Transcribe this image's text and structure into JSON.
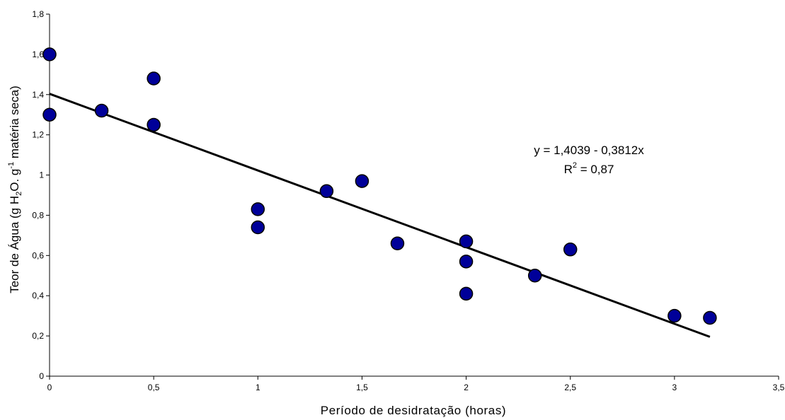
{
  "chart_data": {
    "type": "scatter",
    "xlabel": "Período de desidratação (horas)",
    "ylabel": {
      "p1": "Teor de Água (g H",
      "sub": "2",
      "p2": "O. g",
      "sup": "-1",
      "p3": " matéria seca)"
    },
    "xlim": [
      0,
      3.5
    ],
    "ylim": [
      0,
      1.8
    ],
    "x_ticks": [
      {
        "value": 0,
        "label": "0"
      },
      {
        "value": 0.5,
        "label": "0,5"
      },
      {
        "value": 1,
        "label": "1"
      },
      {
        "value": 1.5,
        "label": "1,5"
      },
      {
        "value": 2,
        "label": "2"
      },
      {
        "value": 2.5,
        "label": "2,5"
      },
      {
        "value": 3,
        "label": "3"
      },
      {
        "value": 3.5,
        "label": "3,5"
      }
    ],
    "y_ticks": [
      {
        "value": 0,
        "label": "0"
      },
      {
        "value": 0.2,
        "label": "0,2"
      },
      {
        "value": 0.4,
        "label": "0,4"
      },
      {
        "value": 0.6,
        "label": "0,6"
      },
      {
        "value": 0.8,
        "label": "0,8"
      },
      {
        "value": 1.0,
        "label": "1"
      },
      {
        "value": 1.2,
        "label": "1,2"
      },
      {
        "value": 1.4,
        "label": "1,4"
      },
      {
        "value": 1.6,
        "label": "1,6"
      },
      {
        "value": 1.8,
        "label": "1,8"
      }
    ],
    "grid": false,
    "marker_color": "#000099",
    "points": [
      {
        "x": 0,
        "y": 1.6
      },
      {
        "x": 0,
        "y": 1.3
      },
      {
        "x": 0.25,
        "y": 1.32
      },
      {
        "x": 0.5,
        "y": 1.48
      },
      {
        "x": 0.5,
        "y": 1.25
      },
      {
        "x": 1,
        "y": 0.83
      },
      {
        "x": 1,
        "y": 0.74
      },
      {
        "x": 1.33,
        "y": 0.92
      },
      {
        "x": 1.5,
        "y": 0.97
      },
      {
        "x": 1.67,
        "y": 0.66
      },
      {
        "x": 2,
        "y": 0.67
      },
      {
        "x": 2,
        "y": 0.57
      },
      {
        "x": 2,
        "y": 0.41
      },
      {
        "x": 2.33,
        "y": 0.5
      },
      {
        "x": 2.5,
        "y": 0.63
      },
      {
        "x": 3,
        "y": 0.3
      },
      {
        "x": 3.17,
        "y": 0.29
      }
    ],
    "trendline": {
      "intercept": 1.4039,
      "slope": -0.3812,
      "x_start": 0,
      "x_end": 3.17,
      "equation": "y = 1,4039 - 0,3812x",
      "r2_prefix": "R",
      "r2_sup": "2",
      "r2_value": " = 0,87"
    }
  }
}
